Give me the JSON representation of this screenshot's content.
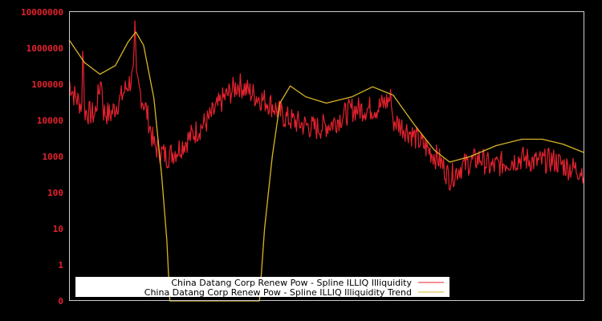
{
  "chart_data": {
    "type": "line",
    "title": "",
    "xlabel": "",
    "ylabel": "",
    "yscale": "log",
    "ylim": [
      0,
      10000000
    ],
    "y_ticks": [
      "10000000",
      "1000000",
      "100000",
      "10000",
      "1000",
      "100",
      "10",
      "1",
      "0"
    ],
    "x_ticks": [],
    "grid": false,
    "legend_position": "bottom-center-inside",
    "background": "#000000",
    "frame_color": "#cccccc",
    "series": [
      {
        "name": "China Datang Corp Renew Pow - Spline ILLIQ Illiquidity",
        "color": "#e3222e",
        "style": "noisy line",
        "approx_points": [
          {
            "x": 0.0,
            "y": 120000
          },
          {
            "x": 0.01,
            "y": 50000
          },
          {
            "x": 0.025,
            "y": 25000
          },
          {
            "x": 0.027,
            "y": 2200000
          },
          {
            "x": 0.03,
            "y": 18000
          },
          {
            "x": 0.05,
            "y": 14000
          },
          {
            "x": 0.063,
            "y": 160000
          },
          {
            "x": 0.066,
            "y": 18000
          },
          {
            "x": 0.08,
            "y": 14000
          },
          {
            "x": 0.1,
            "y": 40000
          },
          {
            "x": 0.115,
            "y": 100000
          },
          {
            "x": 0.125,
            "y": 160000
          },
          {
            "x": 0.128,
            "y": 6500000
          },
          {
            "x": 0.132,
            "y": 100000
          },
          {
            "x": 0.15,
            "y": 20000
          },
          {
            "x": 0.165,
            "y": 2000
          },
          {
            "x": 0.19,
            "y": 1000
          },
          {
            "x": 0.21,
            "y": 1500
          },
          {
            "x": 0.24,
            "y": 4000
          },
          {
            "x": 0.27,
            "y": 10000
          },
          {
            "x": 0.3,
            "y": 40000
          },
          {
            "x": 0.33,
            "y": 100000
          },
          {
            "x": 0.36,
            "y": 50000
          },
          {
            "x": 0.39,
            "y": 30000
          },
          {
            "x": 0.42,
            "y": 12000
          },
          {
            "x": 0.45,
            "y": 8000
          },
          {
            "x": 0.48,
            "y": 6000
          },
          {
            "x": 0.51,
            "y": 8000
          },
          {
            "x": 0.55,
            "y": 20000
          },
          {
            "x": 0.6,
            "y": 22000
          },
          {
            "x": 0.625,
            "y": 40000
          },
          {
            "x": 0.63,
            "y": 10000
          },
          {
            "x": 0.66,
            "y": 5000
          },
          {
            "x": 0.69,
            "y": 2000
          },
          {
            "x": 0.72,
            "y": 800
          },
          {
            "x": 0.74,
            "y": 250
          },
          {
            "x": 0.76,
            "y": 500
          },
          {
            "x": 0.78,
            "y": 700
          },
          {
            "x": 0.8,
            "y": 900
          },
          {
            "x": 0.82,
            "y": 500
          },
          {
            "x": 0.85,
            "y": 700
          },
          {
            "x": 0.88,
            "y": 900
          },
          {
            "x": 0.91,
            "y": 700
          },
          {
            "x": 0.94,
            "y": 800
          },
          {
            "x": 0.97,
            "y": 500
          },
          {
            "x": 1.0,
            "y": 400
          }
        ]
      },
      {
        "name": "China Datang Corp Renew Pow - Spline ILLIQ Illiquidity Trend",
        "color": "#d9b526",
        "style": "smooth line",
        "approx_points": [
          {
            "x": 0.0,
            "y": 1700000
          },
          {
            "x": 0.03,
            "y": 400000
          },
          {
            "x": 0.06,
            "y": 190000
          },
          {
            "x": 0.09,
            "y": 330000
          },
          {
            "x": 0.115,
            "y": 1500000
          },
          {
            "x": 0.13,
            "y": 2800000
          },
          {
            "x": 0.145,
            "y": 1200000
          },
          {
            "x": 0.165,
            "y": 40000
          },
          {
            "x": 0.18,
            "y": 300
          },
          {
            "x": 0.19,
            "y": 5
          },
          {
            "x": 0.196,
            "y": 0
          },
          {
            "x": 0.37,
            "y": 0
          },
          {
            "x": 0.38,
            "y": 10
          },
          {
            "x": 0.395,
            "y": 1000
          },
          {
            "x": 0.41,
            "y": 30000
          },
          {
            "x": 0.43,
            "y": 90000
          },
          {
            "x": 0.46,
            "y": 45000
          },
          {
            "x": 0.5,
            "y": 30000
          },
          {
            "x": 0.55,
            "y": 45000
          },
          {
            "x": 0.59,
            "y": 85000
          },
          {
            "x": 0.63,
            "y": 50000
          },
          {
            "x": 0.67,
            "y": 8000
          },
          {
            "x": 0.71,
            "y": 1500
          },
          {
            "x": 0.74,
            "y": 700
          },
          {
            "x": 0.78,
            "y": 1000
          },
          {
            "x": 0.83,
            "y": 2000
          },
          {
            "x": 0.88,
            "y": 3000
          },
          {
            "x": 0.92,
            "y": 3000
          },
          {
            "x": 0.96,
            "y": 2200
          },
          {
            "x": 1.0,
            "y": 1300
          }
        ]
      }
    ]
  },
  "legend": {
    "items": [
      {
        "label": "China Datang Corp Renew Pow - Spline ILLIQ Illiquidity",
        "color": "#e3222e"
      },
      {
        "label": "China Datang Corp Renew Pow - Spline ILLIQ Illiquidity Trend",
        "color": "#d9b526"
      }
    ]
  }
}
